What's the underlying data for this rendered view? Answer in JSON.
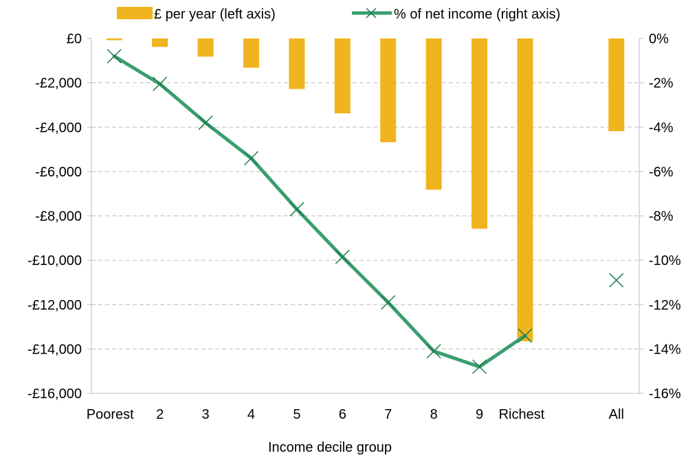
{
  "chart_data": {
    "type": "bar",
    "categories": [
      "Poorest",
      "2",
      "3",
      "4",
      "5",
      "6",
      "7",
      "8",
      "9",
      "Richest",
      "",
      "All"
    ],
    "series": [
      {
        "name": "£ per year (left axis)",
        "kind": "bar",
        "axis": "left",
        "color": "#F0B41E",
        "values": [
          -80,
          -380,
          -820,
          -1320,
          -2280,
          -3380,
          -4680,
          -6820,
          -8580,
          -13650,
          null,
          -4180
        ]
      },
      {
        "name": "% of net income (right axis)",
        "kind": "line",
        "axis": "right",
        "color": "#3A9E6F",
        "marker": "x",
        "values": [
          -0.8,
          -2.05,
          -3.8,
          -5.4,
          -7.7,
          -9.85,
          -11.9,
          -14.1,
          -14.8,
          -13.4,
          null,
          -10.9
        ],
        "unconnected": [
          "All"
        ]
      }
    ],
    "xlabel": "Income decile group",
    "ylabel": "",
    "ylim_left": [
      -16000,
      0
    ],
    "ylim_right": [
      -16,
      0
    ],
    "yticks_left": [
      "£0",
      "-£2,000",
      "-£4,000",
      "-£6,000",
      "-£8,000",
      "-£10,000",
      "-£12,000",
      "-£14,000",
      "-£16,000"
    ],
    "yticks_right": [
      "0%",
      "-2%",
      "-4%",
      "-6%",
      "-8%",
      "-10%",
      "-12%",
      "-14%",
      "-16%"
    ],
    "grid": true,
    "legend_position": "top"
  }
}
